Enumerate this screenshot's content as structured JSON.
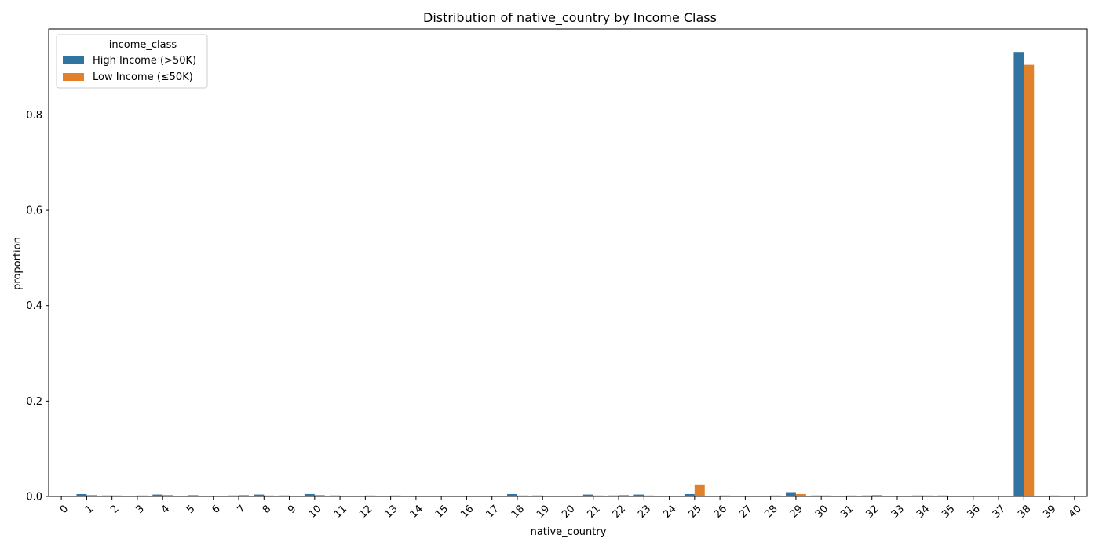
{
  "chart_data": {
    "type": "bar",
    "title": "Distribution of native_country by Income Class",
    "xlabel": "native_country",
    "ylabel": "proportion",
    "ylim": [
      0,
      0.98
    ],
    "yticks": [
      "0.0",
      "0.2",
      "0.4",
      "0.6",
      "0.8"
    ],
    "grid": false,
    "legend_placement": "top-left",
    "legend_title": "income_class",
    "categories": [
      "0",
      "1",
      "2",
      "3",
      "4",
      "5",
      "6",
      "7",
      "8",
      "9",
      "10",
      "11",
      "12",
      "13",
      "14",
      "15",
      "16",
      "17",
      "18",
      "19",
      "20",
      "21",
      "22",
      "23",
      "24",
      "25",
      "26",
      "27",
      "28",
      "29",
      "30",
      "31",
      "32",
      "33",
      "34",
      "35",
      "36",
      "37",
      "38",
      "39",
      "40"
    ],
    "series": [
      {
        "name": "High Income (>50K)",
        "color": "#3274a1",
        "values": [
          0,
          0.005,
          0.002,
          0,
          0.004,
          0,
          0,
          0.002,
          0.004,
          0.002,
          0.005,
          0.002,
          0,
          0,
          0,
          0,
          0,
          0,
          0.005,
          0.002,
          0,
          0.004,
          0.002,
          0.004,
          0,
          0.005,
          0,
          0,
          0,
          0.009,
          0.002,
          0,
          0.002,
          0,
          0.002,
          0.002,
          0,
          0,
          0.932,
          0,
          0
        ]
      },
      {
        "name": "Low Income (≤50K)",
        "color": "#e1812c",
        "values": [
          0,
          0.003,
          0.002,
          0.002,
          0.003,
          0.003,
          0,
          0.003,
          0.002,
          0.001,
          0.003,
          0.001,
          0.002,
          0.002,
          0,
          0,
          0,
          0,
          0.002,
          0.001,
          0,
          0.002,
          0.003,
          0.002,
          0,
          0.025,
          0.002,
          0,
          0.002,
          0.005,
          0.002,
          0.002,
          0.003,
          0,
          0.002,
          0.001,
          0,
          0,
          0.905,
          0.002,
          0
        ]
      }
    ]
  }
}
